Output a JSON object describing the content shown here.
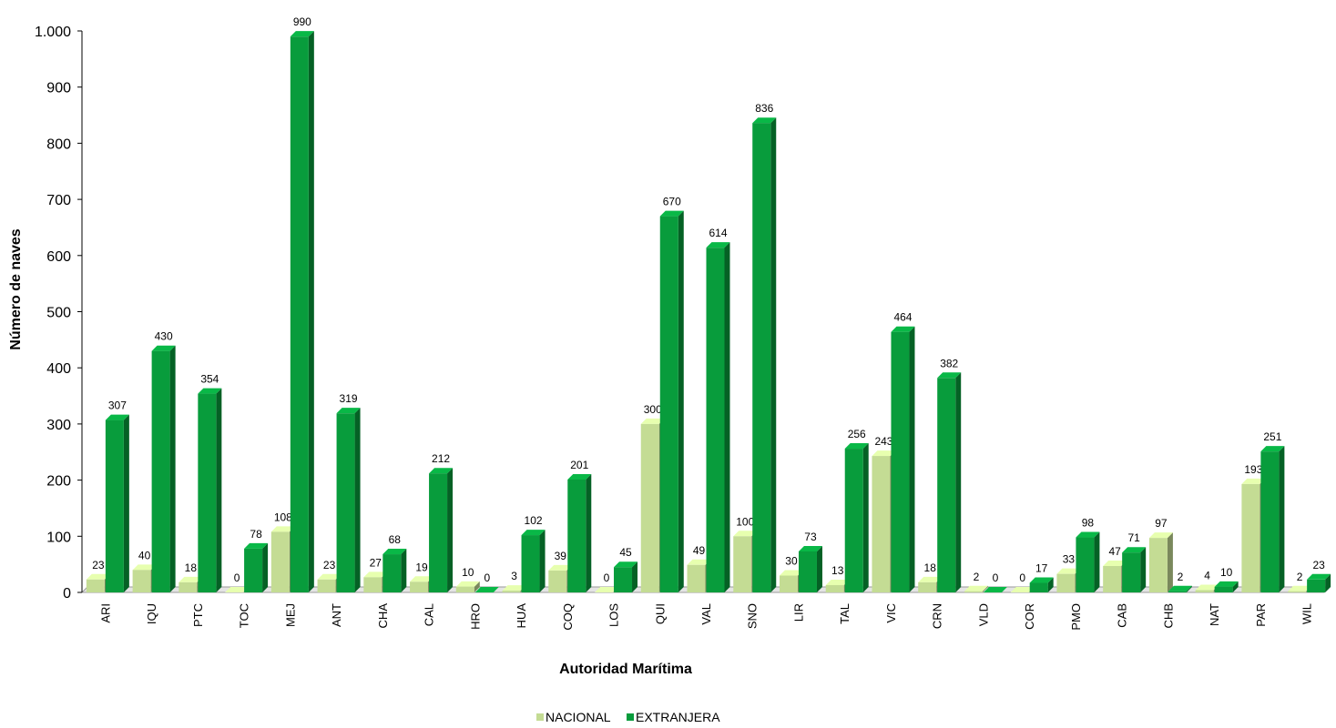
{
  "chart_data": {
    "type": "bar",
    "title": "",
    "xlabel": "Autoridad Marítima",
    "ylabel": "Número de naves",
    "ylim": [
      0,
      1000
    ],
    "yticks": [
      0,
      100,
      200,
      300,
      400,
      500,
      600,
      700,
      800,
      900,
      1000
    ],
    "ytick_labels": [
      "0",
      "100",
      "200",
      "300",
      "400",
      "500",
      "600",
      "700",
      "800",
      "900",
      "1.000"
    ],
    "grid": false,
    "legend_position": "bottom",
    "categories": [
      "ARI",
      "IQU",
      "PTC",
      "TOC",
      "MEJ",
      "ANT",
      "CHA",
      "CAL",
      "HRO",
      "HUA",
      "COQ",
      "LOS",
      "QUI",
      "VAL",
      "SNO",
      "LIR",
      "TAL",
      "VIC",
      "CRN",
      "VLD",
      "COR",
      "PMO",
      "CAB",
      "CHB",
      "NAT",
      "PAR",
      "WIL"
    ],
    "series": [
      {
        "name": "NACIONAL",
        "color": "#c4dc94",
        "values": [
          23,
          40,
          18,
          0,
          108,
          23,
          27,
          19,
          10,
          3,
          39,
          0,
          300,
          49,
          100,
          30,
          13,
          243,
          18,
          2,
          0,
          33,
          47,
          97,
          4,
          193,
          2
        ]
      },
      {
        "name": "EXTRANJERA",
        "color": "#089c3c",
        "values": [
          307,
          430,
          354,
          78,
          990,
          319,
          68,
          212,
          0,
          102,
          201,
          45,
          670,
          614,
          836,
          73,
          256,
          464,
          382,
          0,
          17,
          98,
          71,
          2,
          10,
          251,
          23
        ]
      }
    ]
  }
}
